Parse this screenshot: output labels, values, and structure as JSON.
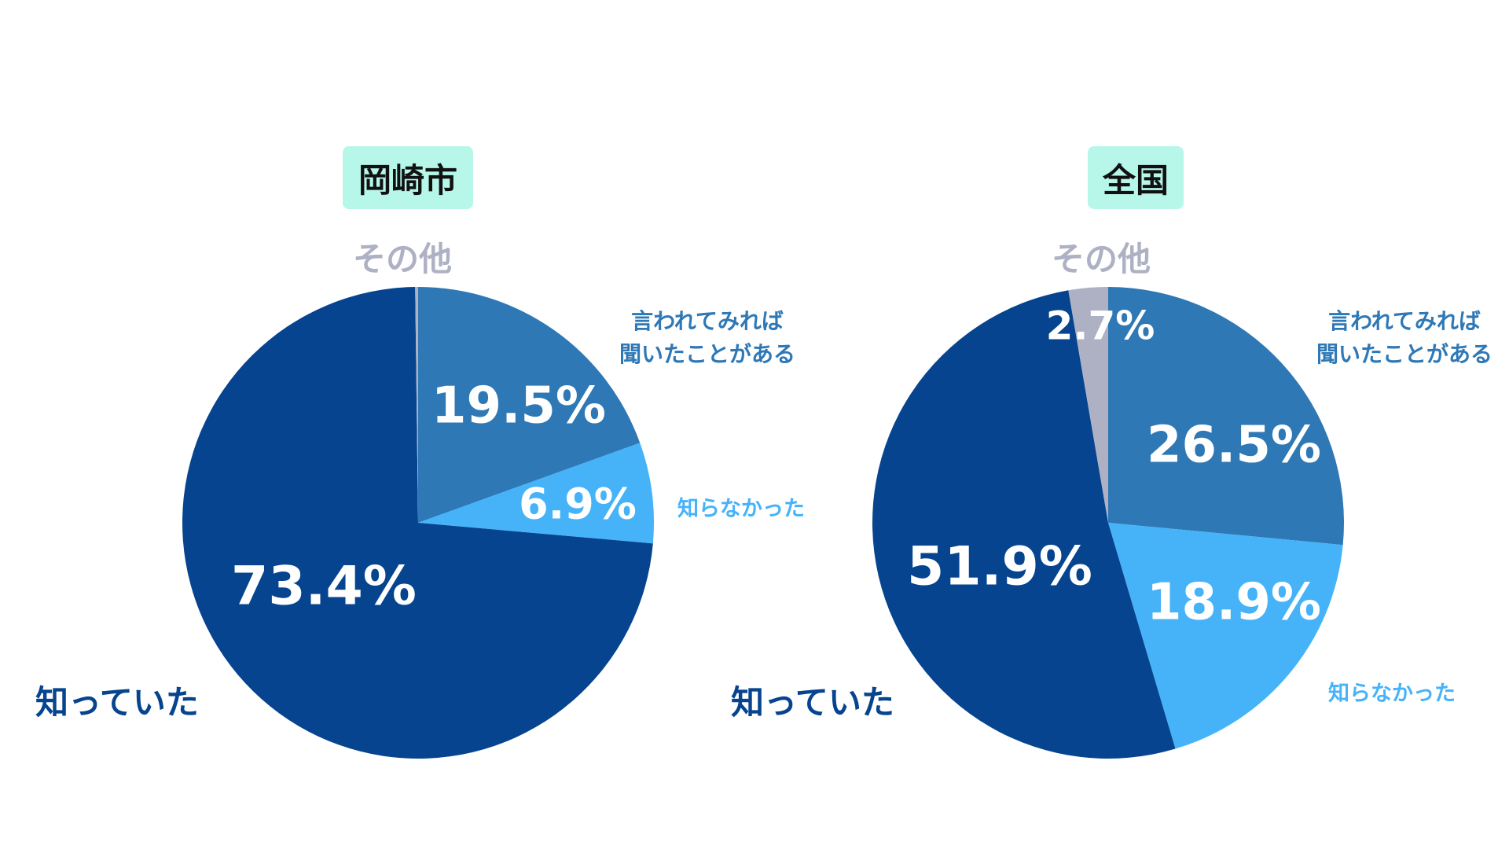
{
  "colors": {
    "known": "#06448f",
    "heard": "#2e78b6",
    "unknown": "#46b3f9",
    "other": "#aeb1c4",
    "badge_bg": "#b6f7ea",
    "pct_text": "#ffffff"
  },
  "chart_data": [
    {
      "type": "pie",
      "title": "岡崎市",
      "slices": [
        {
          "key": "heard",
          "label": "言われてみれば聞いたことがある",
          "label_lines": [
            "言われてみれば",
            "聞いたことがある"
          ],
          "value": 19.5,
          "display": "19.5%"
        },
        {
          "key": "unknown",
          "label": "知らなかった",
          "value": 6.9,
          "display": "6.9%"
        },
        {
          "key": "known",
          "label": "知っていた",
          "value": 73.4,
          "display": "73.4%"
        },
        {
          "key": "other",
          "label": "その他",
          "value": 0.2,
          "display": ""
        }
      ]
    },
    {
      "type": "pie",
      "title": "全国",
      "slices": [
        {
          "key": "heard",
          "label": "言われてみれば聞いたことがある",
          "label_lines": [
            "言われてみれば",
            "聞いたことがある"
          ],
          "value": 26.5,
          "display": "26.5%"
        },
        {
          "key": "unknown",
          "label": "知らなかった",
          "value": 18.9,
          "display": "18.9%"
        },
        {
          "key": "known",
          "label": "知っていた",
          "value": 51.9,
          "display": "51.9%"
        },
        {
          "key": "other",
          "label": "その他",
          "value": 2.7,
          "display": "2.7%"
        }
      ]
    }
  ]
}
